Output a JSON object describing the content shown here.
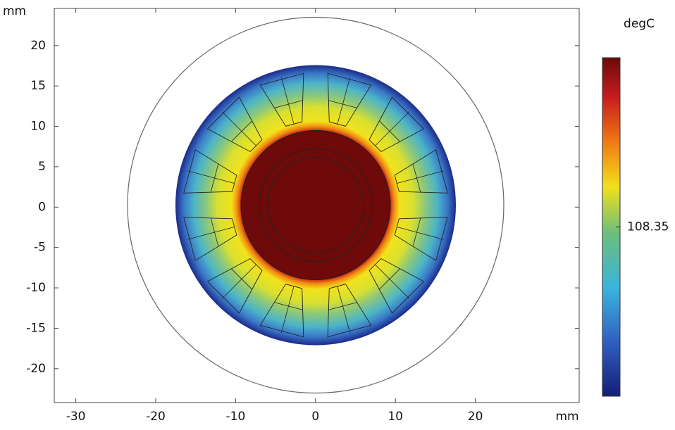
{
  "chart_data": {
    "type": "field",
    "xlabel": "mm",
    "ylabel": "mm",
    "xlim": [
      -32.7,
      33
    ],
    "ylim": [
      -24.2,
      24.6
    ],
    "xticks": [
      -30,
      -20,
      -10,
      0,
      10,
      20
    ],
    "yticks": [
      -20,
      -15,
      -10,
      -5,
      0,
      5,
      10,
      15,
      20
    ],
    "colorbar": {
      "title": "degC",
      "ticks": [
        108.35
      ]
    }
  }
}
